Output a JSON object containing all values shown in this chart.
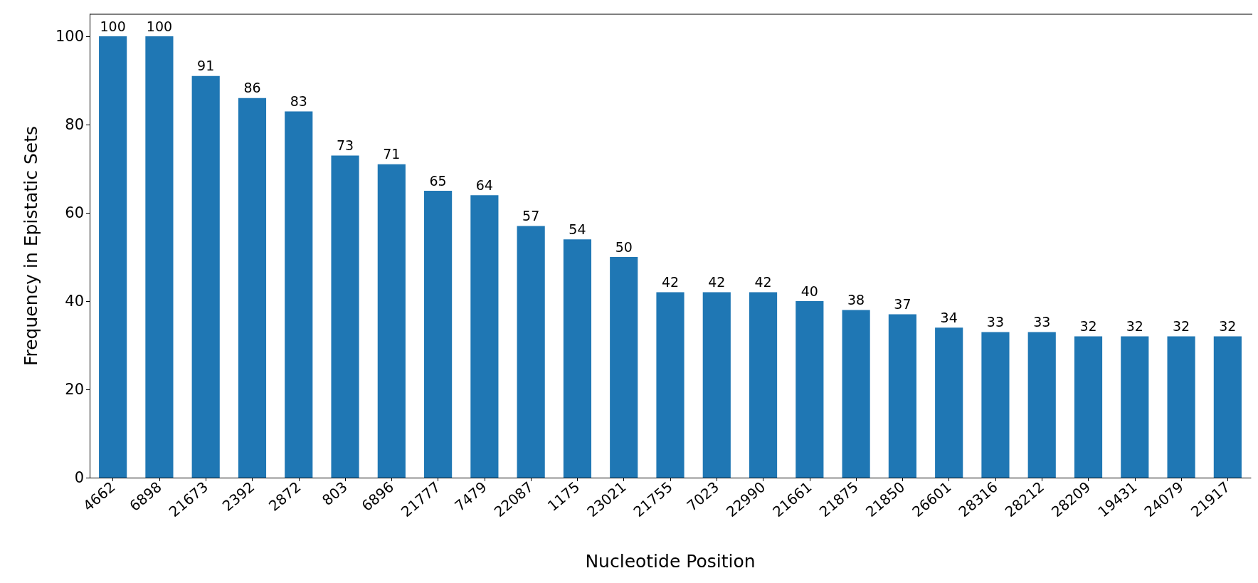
{
  "chart_data": {
    "type": "bar",
    "xlabel": "Nucleotide Position",
    "ylabel": "Frequency in Epistatic Sets",
    "categories": [
      "4662",
      "6898",
      "21673",
      "2392",
      "2872",
      "803",
      "6896",
      "21777",
      "7479",
      "22087",
      "1175",
      "23021",
      "21755",
      "7023",
      "22990",
      "21661",
      "21875",
      "21850",
      "26601",
      "28316",
      "28212",
      "28209",
      "19431",
      "24079",
      "21917"
    ],
    "values": [
      100,
      100,
      91,
      86,
      83,
      73,
      71,
      65,
      64,
      57,
      54,
      50,
      42,
      42,
      42,
      40,
      38,
      37,
      34,
      33,
      33,
      32,
      32,
      32,
      32
    ],
    "color": "#1f77b4",
    "ylim": [
      0,
      105
    ],
    "yticks": [
      0,
      20,
      40,
      60,
      80,
      100
    ],
    "grid": false,
    "data_labels": true
  }
}
